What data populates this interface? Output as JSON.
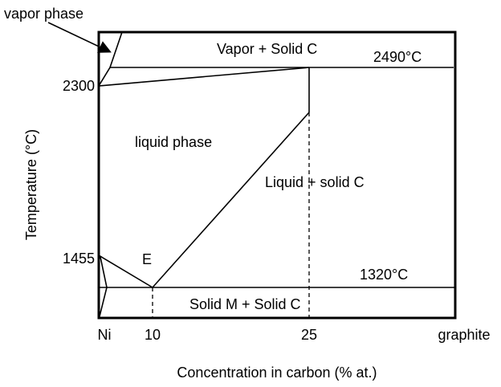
{
  "labels": {
    "vapor_phase": "vapor phase",
    "vapor_solid": "Vapor + Solid C",
    "t_top": "2490°C",
    "liquid_phase": "liquid phase",
    "liquid_solid": "Liquid + solid C",
    "eutectic": "E",
    "t_eutectic": "1320°C",
    "solid_solid": "Solid M + Solid C"
  },
  "y_axis": {
    "title": "Temperature (°C)",
    "ticks": [
      "2300",
      "1455"
    ]
  },
  "x_axis": {
    "title": "Concentration in carbon (% at.)",
    "ticks": [
      "Ni",
      "10",
      "25",
      "graphite"
    ]
  }
}
